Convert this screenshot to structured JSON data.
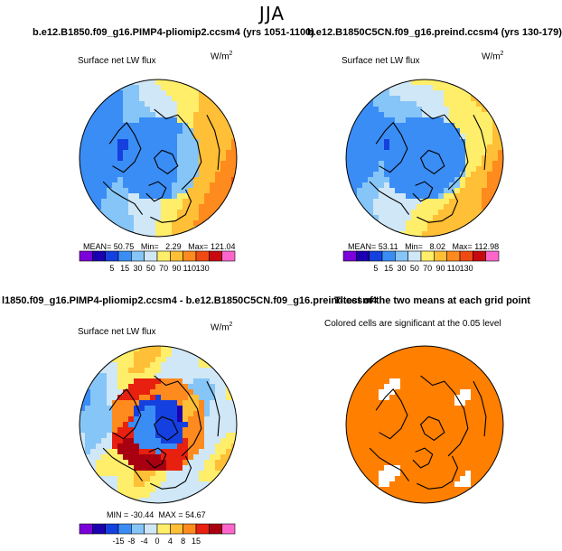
{
  "season": "JJA",
  "colors": {
    "land_outline": "#000000",
    "significant": "#ff7f00",
    "palette_abs": [
      "#7b00d9",
      "#1a00b0",
      "#1540e0",
      "#3a8df5",
      "#86c5f7",
      "#cfe7f6",
      "#ffee6a",
      "#ffbf36",
      "#ff8a1e",
      "#f04a14",
      "#c80a10",
      "#ff66cc"
    ],
    "palette_diff": [
      "#7b00d9",
      "#1a00b0",
      "#1540e0",
      "#3a8df5",
      "#86c5f7",
      "#cfe7f6",
      "#ffee6a",
      "#ffbf36",
      "#ff8a1e",
      "#e82010",
      "#a80010",
      "#ff66cc"
    ]
  },
  "panels": {
    "pliomip": {
      "title": "b.e12.B1850.f09_g16.PIMP4-pliomip2.ccsm4 (yrs 1051-1100)",
      "subtitle": "Surface net LW flux",
      "units_base": "W/m",
      "units_exp": "2",
      "mean_label": "MEAN=",
      "mean": "50.75",
      "min_label": "Min=",
      "min": "2.29",
      "max_label": "Max=",
      "max": "121.04"
    },
    "preind": {
      "title": "b.e12.B1850C5CN.f09_g16.preind.ccsm4 (yrs 130-179)",
      "subtitle": "Surface net LW flux",
      "units_base": "W/m",
      "units_exp": "2",
      "mean_label": "MEAN=",
      "mean": "53.11",
      "min_label": "Min=",
      "min": "8.02",
      "max_label": "Max=",
      "max": "112.98"
    },
    "difference": {
      "title": "l1850.f09_g16.PIMP4-pliomip2.ccsm4 - b.e12.B1850C5CN.f09_g16.preind.ccsm4",
      "subtitle": "Surface net LW flux",
      "units_base": "W/m",
      "units_exp": "2",
      "min_label": "MIN =",
      "min": "-30.44",
      "max_label": "MAX =",
      "max": "54.67"
    },
    "ttest": {
      "title": "T-test of the two means at each grid point",
      "subtitle": "Colored cells are significant at the 0.05 level"
    }
  },
  "chart_data": [
    {
      "type": "heatmap",
      "title": "b.e12.B1850.f09_g16.PIMP4-pliomip2.ccsm4 (yrs 1051-1100)",
      "subtitle": "Surface net LW flux",
      "projection": "north polar stereographic",
      "units": "W/m2",
      "colorbar_ticks": [
        "5",
        "15",
        "30",
        "50",
        "70",
        "90",
        "110",
        "130"
      ],
      "mean": 50.75,
      "min": 2.29,
      "max": 121.04
    },
    {
      "type": "heatmap",
      "title": "b.e12.B1850C5CN.f09_g16.preind.ccsm4 (yrs 130-179)",
      "subtitle": "Surface net LW flux",
      "projection": "north polar stereographic",
      "units": "W/m2",
      "colorbar_ticks": [
        "5",
        "15",
        "30",
        "50",
        "70",
        "90",
        "110",
        "130"
      ],
      "mean": 53.11,
      "min": 8.02,
      "max": 112.98
    },
    {
      "type": "heatmap",
      "title": "l1850.f09_g16.PIMP4-pliomip2.ccsm4 - b.e12.B1850C5CN.f09_g16.preind.ccsm4",
      "subtitle": "Surface net LW flux",
      "projection": "north polar stereographic",
      "units": "W/m2",
      "colorbar_ticks": [
        "-15",
        "-8",
        "-4",
        "0",
        "4",
        "8",
        "15"
      ],
      "min": -30.44,
      "max": 54.67
    },
    {
      "type": "heatmap",
      "title": "T-test of the two means at each grid point",
      "subtitle": "Colored cells are significant at the 0.05 level",
      "projection": "north polar stereographic",
      "significance_level": 0.05
    }
  ]
}
